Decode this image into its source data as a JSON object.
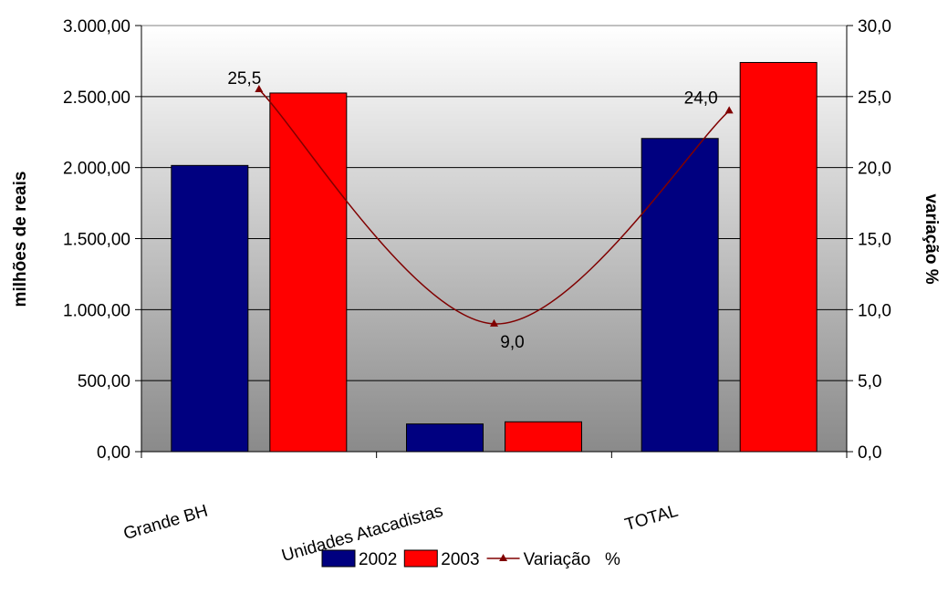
{
  "chart_data": {
    "type": "bar",
    "categories": [
      "Grande BH",
      "Unidades Atacadistas",
      "TOTAL"
    ],
    "series": [
      {
        "name": "2002",
        "type": "bar",
        "axis": "left",
        "color": "#000080",
        "values": [
          2015,
          195,
          2205
        ]
      },
      {
        "name": "2003",
        "type": "bar",
        "axis": "left",
        "color": "#ff0000",
        "values": [
          2525,
          210,
          2740
        ]
      },
      {
        "name": "Variação   %",
        "type": "line",
        "axis": "right",
        "color": "#800000",
        "values": [
          25.5,
          9.0,
          24.0
        ],
        "data_labels": [
          "25,5",
          "9,0",
          "24,0"
        ]
      }
    ],
    "ylabel": "milhões de reais",
    "y2label": "variação %",
    "ylim": [
      0,
      3000
    ],
    "y2lim": [
      0,
      30
    ],
    "yticks": [
      "0,00",
      "500,00",
      "1.000,00",
      "1.500,00",
      "2.000,00",
      "2.500,00",
      "3.000,00"
    ],
    "y2ticks": [
      "0,0",
      "5,0",
      "10,0",
      "15,0",
      "20,0",
      "25,0",
      "30,0"
    ],
    "grid": true,
    "legend_position": "bottom"
  }
}
